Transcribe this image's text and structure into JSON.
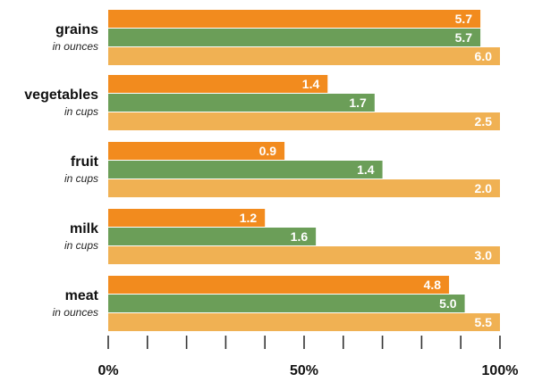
{
  "chart_data": {
    "type": "bar",
    "orientation": "horizontal",
    "categories": [
      "grains",
      "vegetables",
      "fruit",
      "milk",
      "meat"
    ],
    "category_units": [
      "in ounces",
      "in cups",
      "in cups",
      "in cups",
      "in ounces"
    ],
    "recommended": [
      6.0,
      2.5,
      2.0,
      3.0,
      5.5
    ],
    "series": [
      {
        "color": "#f28b1e",
        "values": [
          5.7,
          1.4,
          0.9,
          1.2,
          4.8
        ],
        "percent_of_recommended": [
          95,
          56,
          45,
          40,
          87
        ]
      },
      {
        "color": "#6b9e58",
        "values": [
          5.7,
          1.7,
          1.4,
          1.6,
          5.0
        ],
        "percent_of_recommended": [
          95,
          68,
          70,
          53,
          91
        ]
      },
      {
        "color": "#f0b153",
        "values": [
          6.0,
          2.5,
          2.0,
          3.0,
          5.5
        ],
        "percent_of_recommended": [
          100,
          100,
          100,
          100,
          100
        ]
      }
    ],
    "xlim": [
      0,
      100
    ],
    "x_ticks": [
      0,
      10,
      20,
      30,
      40,
      50,
      60,
      70,
      80,
      90,
      100
    ],
    "x_tick_labels": [
      "0%",
      "",
      "",
      "",
      "",
      "50%",
      "",
      "",
      "",
      "",
      "100%"
    ],
    "grid": false,
    "legend": "none"
  }
}
